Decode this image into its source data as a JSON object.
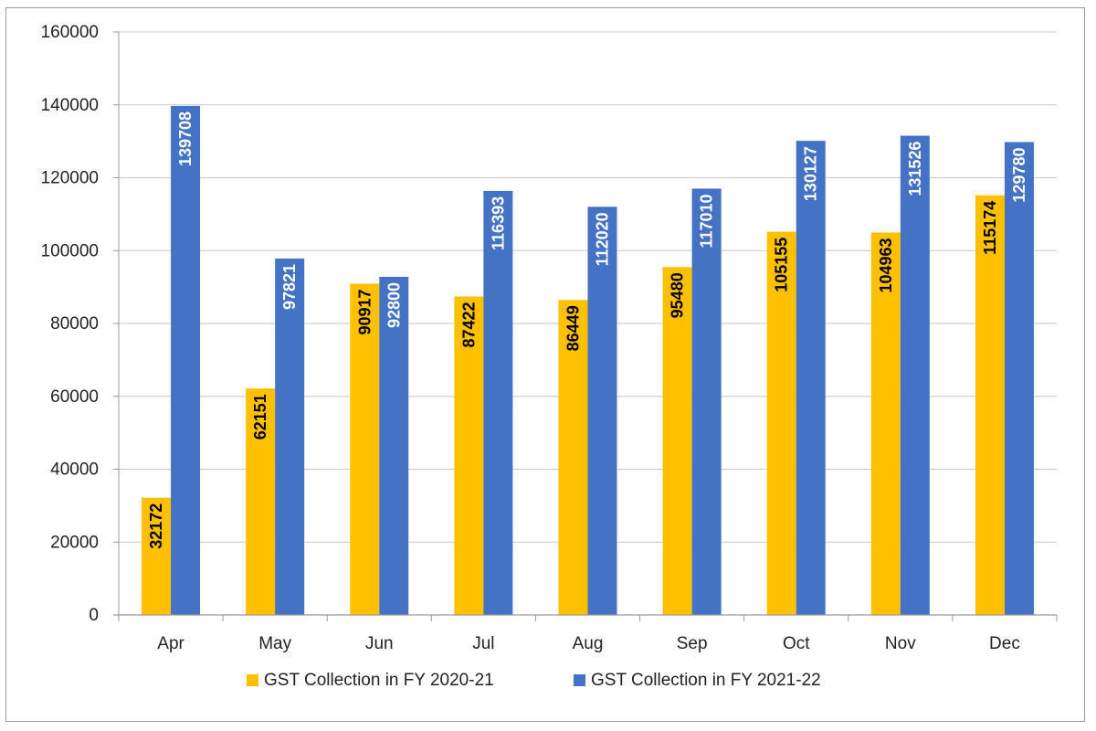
{
  "chart_data": {
    "type": "bar",
    "title": "",
    "xlabel": "",
    "ylabel": "",
    "categories": [
      "Apr",
      "May",
      "Jun",
      "Jul",
      "Aug",
      "Sep",
      "Oct",
      "Nov",
      "Dec"
    ],
    "series": [
      {
        "name": "GST Collection in FY 2020-21",
        "color": "#FFC000",
        "label_color": "#000000",
        "values": [
          32172,
          62151,
          90917,
          87422,
          86449,
          95480,
          105155,
          104963,
          115174
        ]
      },
      {
        "name": "GST Collection in FY 2021-22",
        "color": "#4472C4",
        "label_color": "#ffffff",
        "values": [
          139708,
          97821,
          92800,
          116393,
          112020,
          117010,
          130127,
          131526,
          129780
        ]
      }
    ],
    "ylim": [
      0,
      160000
    ],
    "yticks": [
      0,
      20000,
      40000,
      60000,
      80000,
      100000,
      120000,
      140000,
      160000
    ],
    "grid": true,
    "legend_position": "bottom-center"
  }
}
